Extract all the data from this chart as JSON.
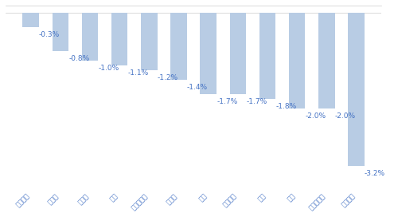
{
  "categories": [
    "其他食品",
    "肉制品",
    "软饮料",
    "白酒",
    "调味发酵品",
    "保健品",
    "乳品",
    "烘焙食品",
    "茶叶",
    "啊酒",
    "烟草工食品",
    "其他酒类"
  ],
  "values": [
    -0.3,
    -0.8,
    -1.0,
    -1.1,
    -1.2,
    -1.4,
    -1.7,
    -1.7,
    -1.8,
    -2.0,
    -2.0,
    -3.2
  ],
  "labels": [
    "-0.3%",
    "-0.8%",
    "-1.0%",
    "-1.1%",
    "-1.2%",
    "-1.4%",
    "-1.7%",
    "-1.7%",
    "-1.8%",
    "-2.0%",
    "-2.0%",
    "-3.2%"
  ],
  "bar_color": "#b8cce4",
  "label_color": "#4472c4",
  "tick_color": "#4472c4",
  "background_color": "#ffffff",
  "ylim": [
    -3.7,
    0.15
  ],
  "bar_width": 0.55,
  "figsize": [
    4.95,
    2.72
  ],
  "dpi": 100,
  "label_fontsize": 6.5,
  "tick_fontsize": 6.0
}
